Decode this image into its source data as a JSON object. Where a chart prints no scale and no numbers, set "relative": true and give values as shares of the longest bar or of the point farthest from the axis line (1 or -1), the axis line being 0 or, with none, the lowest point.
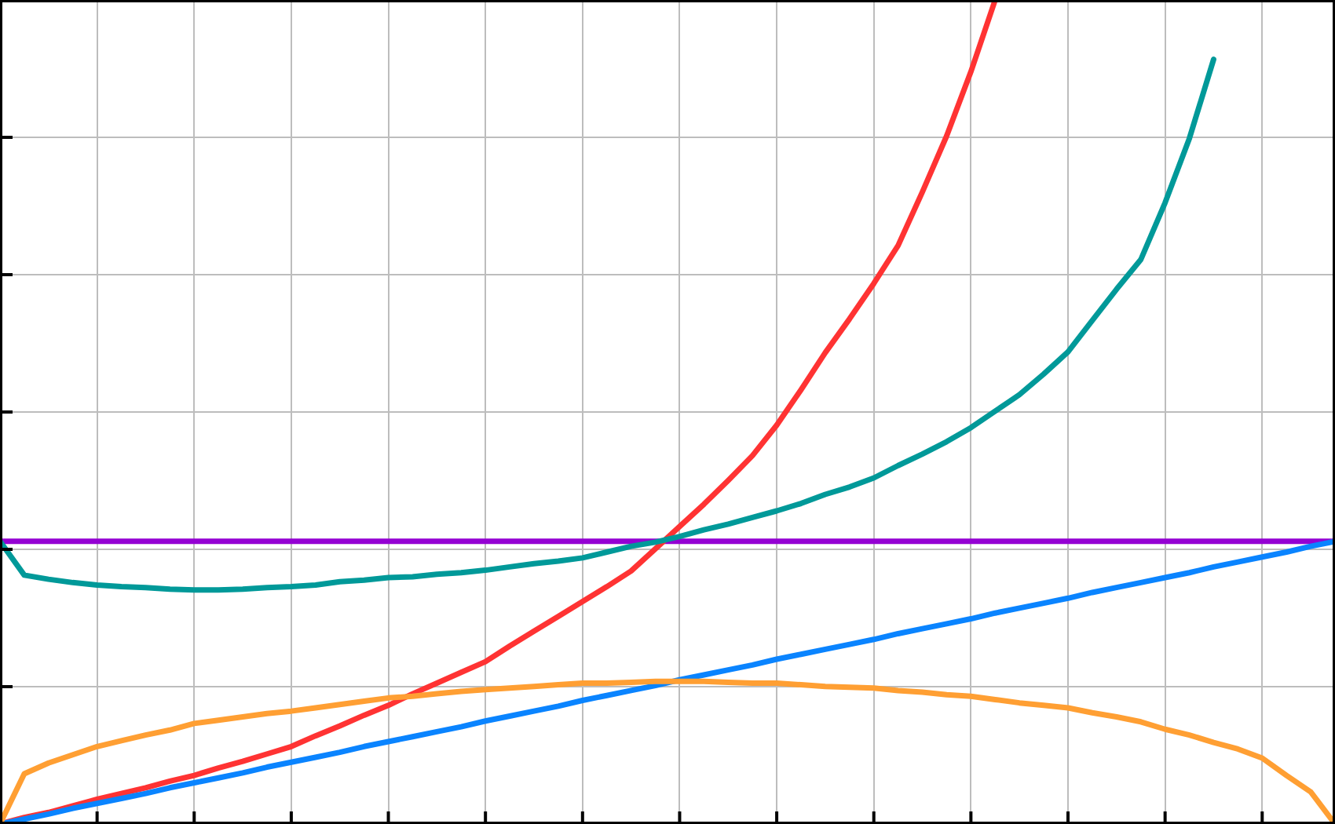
{
  "chart_data": {
    "type": "line",
    "relative": true,
    "grid": true,
    "legend": false,
    "categories": [
      null,
      null,
      null,
      null,
      null,
      null,
      null,
      null,
      null,
      null,
      null,
      null,
      null,
      null,
      null,
      null,
      null,
      null,
      null,
      null,
      null,
      null,
      null,
      null,
      null,
      null,
      null,
      null,
      null,
      null,
      null,
      null,
      null,
      null,
      null,
      null,
      null,
      null,
      null,
      null,
      null,
      null,
      null,
      null,
      null,
      null,
      null,
      null,
      null,
      null,
      null,
      null,
      null,
      null,
      null,
      null
    ],
    "series": [
      {
        "color": "#ff9f33",
        "values": [
          0,
          0.061,
          0.074,
          0.084,
          0.094,
          0.101,
          0.108,
          0.114,
          0.122,
          0.126,
          0.13,
          0.134,
          0.137,
          0.141,
          0.145,
          0.149,
          0.153,
          0.155,
          0.158,
          0.161,
          0.163,
          0.165,
          0.167,
          0.169,
          0.171,
          0.171,
          0.172,
          0.173,
          0.173,
          0.173,
          0.172,
          0.171,
          0.171,
          0.169,
          0.167,
          0.166,
          0.165,
          0.162,
          0.16,
          0.157,
          0.155,
          0.151,
          0.147,
          0.144,
          0.141,
          0.135,
          0.13,
          0.124,
          0.115,
          0.108,
          0.099,
          0.091,
          0.08,
          0.059,
          0.039,
          0
        ]
      },
      {
        "color": "#0a84ff",
        "values": [
          0,
          0.006,
          0.012,
          0.019,
          0.025,
          0.031,
          0.037,
          0.044,
          0.05,
          0.056,
          0.062,
          0.069,
          0.075,
          0.081,
          0.087,
          0.094,
          0.1,
          0.106,
          0.112,
          0.118,
          0.125,
          0.131,
          0.137,
          0.143,
          0.15,
          0.156,
          0.162,
          0.168,
          0.175,
          0.181,
          0.187,
          0.193,
          0.2,
          0.206,
          0.212,
          0.218,
          0.224,
          0.231,
          0.237,
          0.243,
          0.249,
          0.256,
          0.262,
          0.268,
          0.274,
          0.281,
          0.287,
          0.293,
          0.299,
          0.305,
          0.312,
          0.318,
          0.324,
          0.33,
          0.337,
          0.343
        ]
      },
      {
        "color": "#009999",
        "values": [
          0.343,
          0.302,
          0.297,
          0.293,
          0.29,
          0.288,
          0.287,
          0.285,
          0.284,
          0.284,
          0.285,
          0.287,
          0.288,
          0.29,
          0.294,
          0.296,
          0.299,
          0.3,
          0.303,
          0.305,
          0.308,
          0.312,
          0.316,
          0.319,
          0.323,
          0.33,
          0.337,
          0.342,
          0.349,
          0.357,
          0.364,
          0.372,
          0.38,
          0.389,
          0.4,
          0.409,
          0.42,
          0.435,
          0.449,
          0.464,
          0.481,
          0.501,
          0.521,
          0.546,
          0.573,
          0.611,
          0.649,
          0.685,
          0.754,
          0.832,
          0.928,
          null,
          null,
          null,
          null,
          null
        ]
      },
      {
        "color": "#ff3333",
        "values": [
          0,
          0.008,
          0.014,
          0.022,
          0.03,
          0.037,
          0.044,
          0.052,
          0.059,
          0.068,
          0.076,
          0.085,
          0.094,
          0.107,
          0.119,
          0.132,
          0.144,
          0.158,
          0.171,
          0.184,
          0.197,
          0.216,
          0.234,
          0.252,
          0.27,
          0.288,
          0.307,
          0.334,
          0.361,
          0.388,
          0.417,
          0.447,
          0.484,
          0.527,
          0.572,
          0.613,
          0.656,
          0.702,
          0.767,
          0.835,
          0.913,
          1,
          null,
          null,
          null,
          null,
          null,
          null,
          null,
          null,
          null,
          null,
          null,
          null,
          null,
          null
        ]
      },
      {
        "color": "#9400d3",
        "values": [
          0.343,
          0.343,
          0.343,
          0.343,
          0.343,
          0.343,
          0.343,
          0.343,
          0.343,
          0.343,
          0.343,
          0.343,
          0.343,
          0.343,
          0.343,
          0.343,
          0.343,
          0.343,
          0.343,
          0.343,
          0.343,
          0.343,
          0.343,
          0.343,
          0.343,
          0.343,
          0.343,
          0.343,
          0.343,
          0.343,
          0.343,
          0.343,
          0.343,
          0.343,
          0.343,
          0.343,
          0.343,
          0.343,
          0.343,
          0.343,
          0.343,
          0.343,
          0.343,
          0.343,
          0.343,
          0.343,
          0.343,
          0.343,
          0.343,
          0.343,
          0.343,
          0.343,
          0.343,
          0.343,
          0.343,
          0.343
        ]
      }
    ]
  }
}
